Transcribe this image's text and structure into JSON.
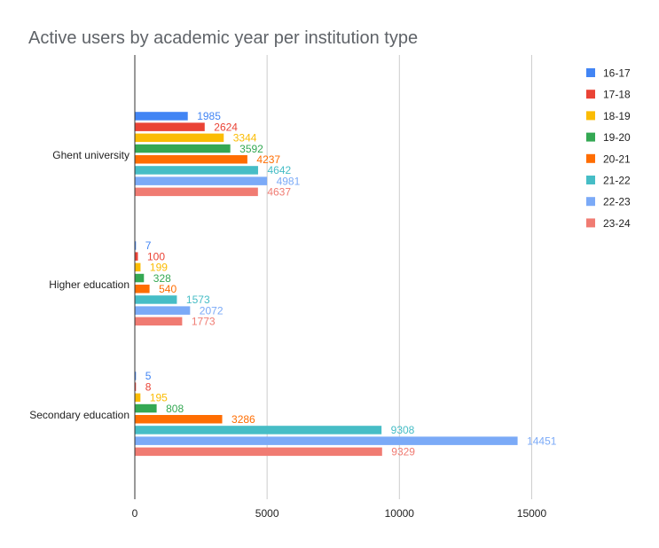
{
  "chart_data": {
    "type": "bar",
    "orientation": "horizontal",
    "title": "Active users by academic year per institution type",
    "xlabel": "",
    "ylabel": "",
    "categories": [
      "Ghent university",
      "Higher education",
      "Secondary education"
    ],
    "series": [
      {
        "name": "16-17",
        "color": "#4285f4",
        "values": [
          1985,
          7,
          5
        ]
      },
      {
        "name": "17-18",
        "color": "#ea4335",
        "values": [
          2624,
          100,
          8
        ]
      },
      {
        "name": "18-19",
        "color": "#fbbc04",
        "values": [
          3344,
          199,
          195
        ]
      },
      {
        "name": "19-20",
        "color": "#34a853",
        "values": [
          3592,
          328,
          808
        ]
      },
      {
        "name": "20-21",
        "color": "#ff6d01",
        "values": [
          4237,
          540,
          3286
        ]
      },
      {
        "name": "21-22",
        "color": "#46bdc6",
        "values": [
          4642,
          1573,
          9308
        ]
      },
      {
        "name": "22-23",
        "color": "#7baaf7",
        "values": [
          4981,
          2072,
          14451
        ]
      },
      {
        "name": "23-24",
        "color": "#f07b72",
        "values": [
          4637,
          1773,
          9329
        ]
      }
    ],
    "x_ticks": [
      0,
      5000,
      10000,
      15000
    ],
    "xlim": [
      0,
      17700
    ],
    "grid": true,
    "legend_position": "right",
    "data_labels": true
  }
}
